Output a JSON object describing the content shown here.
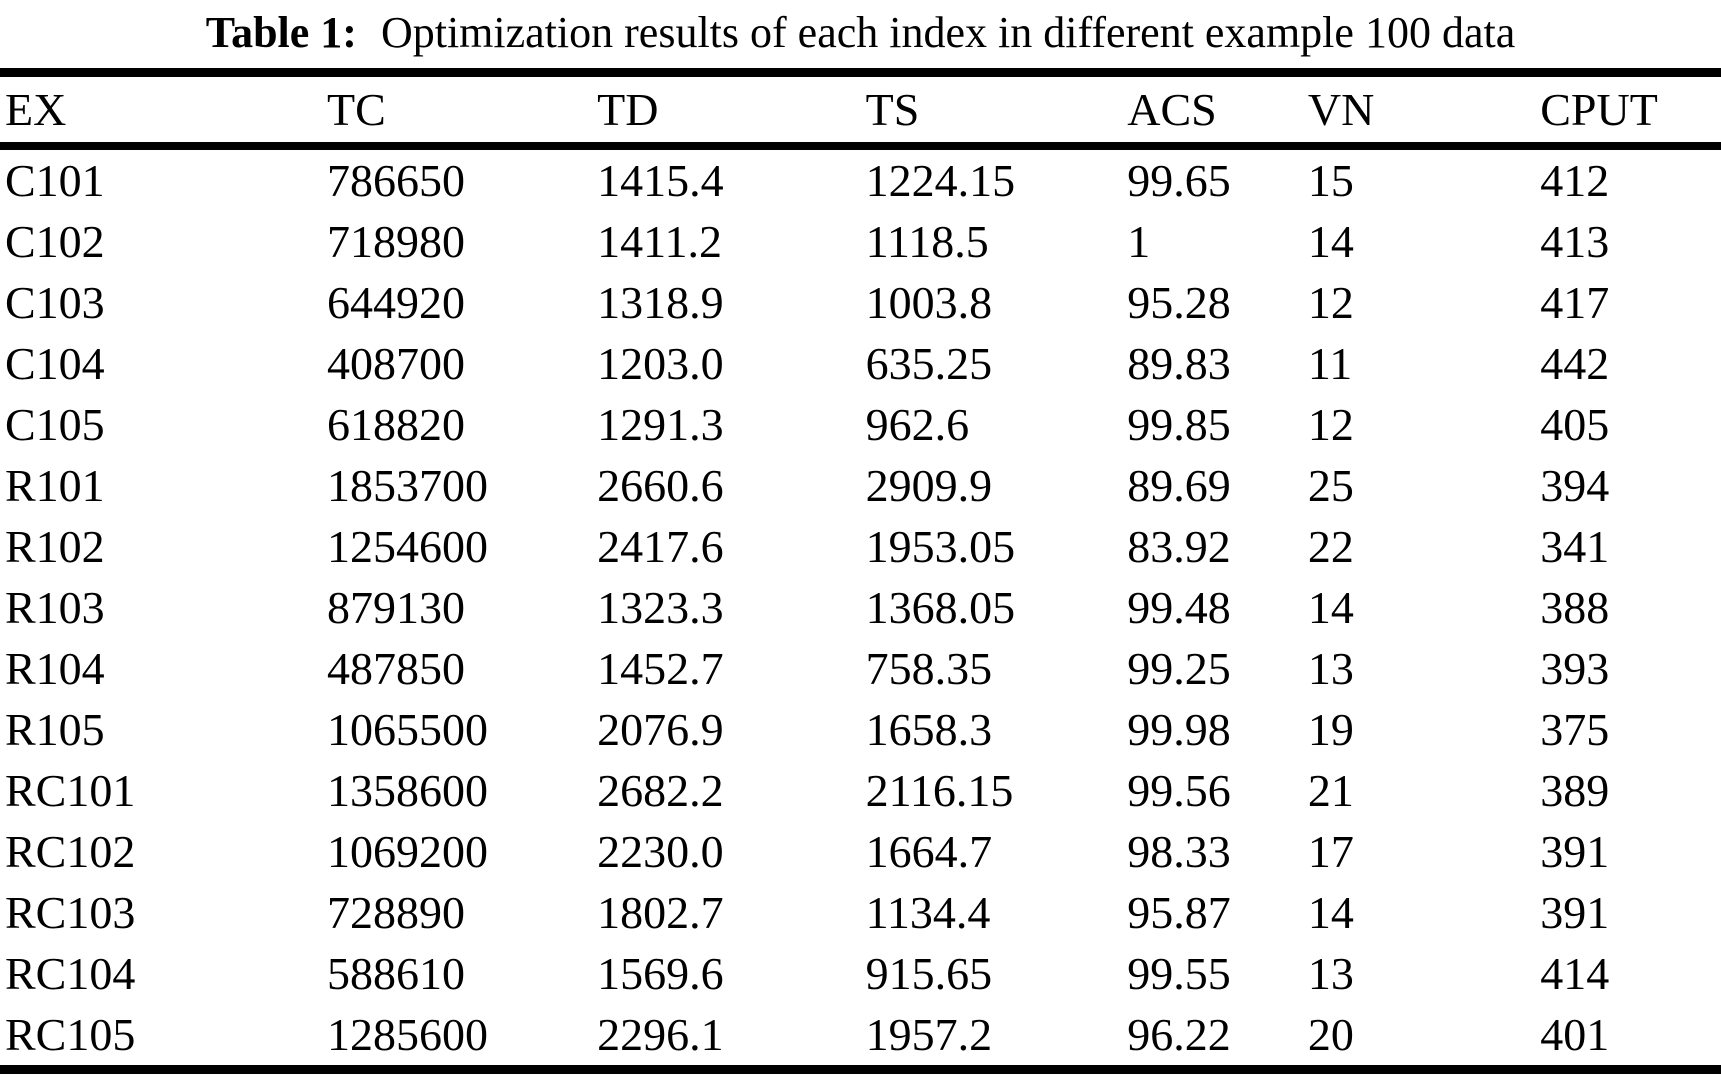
{
  "caption": {
    "label": "Table 1:",
    "text": "Optimization results of each index in different example 100 data"
  },
  "colors": {
    "text": "#000000",
    "background": "#ffffff",
    "rule": "#000000"
  },
  "chart_data": {
    "type": "table",
    "title": "Table 1: Optimization results of each index in different example 100 data",
    "columns": [
      "EX",
      "TC",
      "TD",
      "TS",
      "ACS",
      "VN",
      "CPUT"
    ],
    "rows": [
      [
        "C101",
        "786650",
        "1415.4",
        "1224.15",
        "99.65",
        "15",
        "412"
      ],
      [
        "C102",
        "718980",
        "1411.2",
        "1118.5",
        "1",
        "14",
        "413"
      ],
      [
        "C103",
        "644920",
        "1318.9",
        "1003.8",
        "95.28",
        "12",
        "417"
      ],
      [
        "C104",
        "408700",
        "1203.0",
        "635.25",
        "89.83",
        "11",
        "442"
      ],
      [
        "C105",
        "618820",
        "1291.3",
        "962.6",
        "99.85",
        "12",
        "405"
      ],
      [
        "R101",
        "1853700",
        "2660.6",
        "2909.9",
        "89.69",
        "25",
        "394"
      ],
      [
        "R102",
        "1254600",
        "2417.6",
        "1953.05",
        "83.92",
        "22",
        "341"
      ],
      [
        "R103",
        "879130",
        "1323.3",
        "1368.05",
        "99.48",
        "14",
        "388"
      ],
      [
        "R104",
        "487850",
        "1452.7",
        "758.35",
        "99.25",
        "13",
        "393"
      ],
      [
        "R105",
        "1065500",
        "2076.9",
        "1658.3",
        "99.98",
        "19",
        "375"
      ],
      [
        "RC101",
        "1358600",
        "2682.2",
        "2116.15",
        "99.56",
        "21",
        "389"
      ],
      [
        "RC102",
        "1069200",
        "2230.0",
        "1664.7",
        "98.33",
        "17",
        "391"
      ],
      [
        "RC103",
        "728890",
        "1802.7",
        "1134.4",
        "95.87",
        "14",
        "391"
      ],
      [
        "RC104",
        "588610",
        "1569.6",
        "915.65",
        "99.55",
        "13",
        "414"
      ],
      [
        "RC105",
        "1285600",
        "2296.1",
        "1957.2",
        "96.22",
        "20",
        "401"
      ]
    ]
  }
}
